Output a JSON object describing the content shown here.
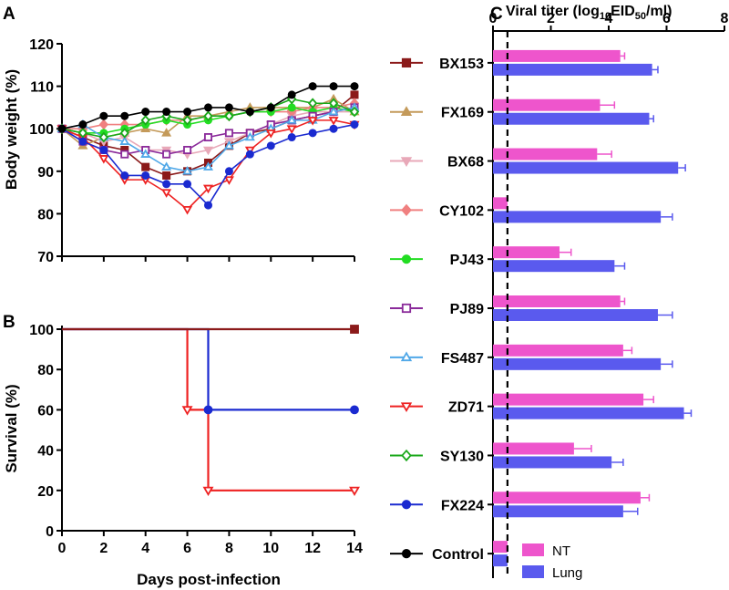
{
  "colors": {
    "BX153": "#8b1a1a",
    "FX169": "#c49a5a",
    "BX68": "#e8a8b8",
    "CY102": "#f08080",
    "PJ43": "#22dd22",
    "PJ89": "#8a2a9a",
    "FS487": "#50a8e8",
    "ZD71": "#ee2222",
    "SY130": "#1aa81a",
    "FX224": "#1a2ad0",
    "Control": "#000000",
    "NT": "#ee55cc",
    "Lung": "#5a5aee"
  },
  "panels": {
    "A": {
      "letter": "A"
    },
    "B": {
      "letter": "B"
    },
    "C": {
      "letter": "C",
      "title_prefix": "Viral titer (log",
      "title_sub": "10",
      "title_suffix": "EID",
      "title_sub2": "50",
      "title_end": "/ml)"
    }
  },
  "shared_xlabel": "Days post-infection",
  "chart_data": [
    {
      "panel": "A",
      "type": "line",
      "title": "",
      "xlabel": "Days post-infection",
      "ylabel": "Body weight (%)",
      "xlim": [
        0,
        14
      ],
      "ylim": [
        70,
        120
      ],
      "xticks": [
        "0",
        "2",
        "4",
        "6",
        "8",
        "10",
        "12",
        "14"
      ],
      "yticks": [
        "70",
        "80",
        "90",
        "100",
        "110",
        "120"
      ],
      "x": [
        0,
        1,
        2,
        3,
        4,
        5,
        6,
        7,
        8,
        9,
        10,
        11,
        12,
        13,
        14
      ],
      "series": [
        {
          "name": "BX153",
          "marker": "square",
          "values": [
            100,
            98,
            96,
            95,
            91,
            89,
            90,
            92,
            96,
            99,
            100,
            102,
            103,
            104,
            108
          ]
        },
        {
          "name": "FX169",
          "marker": "triangle-up",
          "values": [
            100,
            96,
            98,
            99,
            100,
            99,
            103,
            103,
            104,
            105,
            105,
            105,
            105,
            107,
            104
          ]
        },
        {
          "name": "BX68",
          "marker": "triangle-down",
          "values": [
            100,
            99,
            97,
            98,
            95,
            95,
            94,
            95,
            97,
            99,
            101,
            103,
            104,
            104,
            104
          ]
        },
        {
          "name": "CY102",
          "marker": "diamond",
          "values": [
            100,
            100,
            101,
            101,
            101,
            102,
            102,
            103,
            103,
            104,
            104,
            104,
            105,
            105,
            106
          ]
        },
        {
          "name": "PJ43",
          "marker": "circle",
          "values": [
            100,
            99,
            99,
            100,
            101,
            102,
            101,
            102,
            103,
            104,
            104,
            105,
            104,
            105,
            104
          ]
        },
        {
          "name": "PJ89",
          "marker": "square-open",
          "values": [
            100,
            97,
            95,
            94,
            95,
            94,
            95,
            98,
            99,
            99,
            101,
            102,
            103,
            104,
            105
          ]
        },
        {
          "name": "FS487",
          "marker": "triangle-up-open",
          "values": [
            100,
            101,
            98,
            97,
            94,
            91,
            90,
            91,
            96,
            98,
            100,
            102,
            102,
            104,
            105
          ]
        },
        {
          "name": "ZD71",
          "marker": "triangle-down-open",
          "values": [
            100,
            98,
            93,
            88,
            88,
            85,
            81,
            86,
            88,
            95,
            99,
            100,
            102,
            102,
            101
          ]
        },
        {
          "name": "SY130",
          "marker": "diamond-open",
          "values": [
            100,
            99,
            98,
            99,
            102,
            103,
            102,
            103,
            103,
            104,
            105,
            107,
            106,
            106,
            104
          ]
        },
        {
          "name": "FX224",
          "marker": "circle",
          "values": [
            100,
            97,
            95,
            89,
            89,
            87,
            87,
            82,
            90,
            94,
            96,
            98,
            99,
            100,
            101
          ]
        },
        {
          "name": "Control",
          "marker": "circle",
          "values": [
            100,
            101,
            103,
            103,
            104,
            104,
            104,
            105,
            105,
            104,
            105,
            108,
            110,
            110,
            110
          ]
        }
      ]
    },
    {
      "panel": "B",
      "type": "line",
      "title": "",
      "xlabel": "Days post-infection",
      "ylabel": "Survival (%)",
      "xlim": [
        0,
        14
      ],
      "ylim": [
        0,
        100
      ],
      "xticks": [
        "0",
        "2",
        "4",
        "6",
        "8",
        "10",
        "12",
        "14"
      ],
      "yticks": [
        "0",
        "20",
        "40",
        "60",
        "80",
        "100"
      ],
      "step": true,
      "series": [
        {
          "name": "ZD71",
          "points": [
            [
              0,
              100
            ],
            [
              6,
              100
            ],
            [
              6,
              60
            ],
            [
              7,
              60
            ],
            [
              7,
              20
            ],
            [
              14,
              20
            ]
          ],
          "end_marker": "triangle-down-open"
        },
        {
          "name": "FX224",
          "points": [
            [
              0,
              100
            ],
            [
              7,
              100
            ],
            [
              7,
              60
            ],
            [
              14,
              60
            ]
          ],
          "end_marker": "circle"
        },
        {
          "name": "BX153",
          "points": [
            [
              0,
              100
            ],
            [
              14,
              100
            ]
          ],
          "end_marker": "square"
        }
      ]
    },
    {
      "panel": "C",
      "type": "bar",
      "orientation": "horizontal",
      "title": "Viral titer (log10EID50/ml)",
      "xlim": [
        0,
        8
      ],
      "xticks": [
        "0",
        "2",
        "4",
        "6",
        "8"
      ],
      "threshold": 0.5,
      "categories": [
        "BX153",
        "FX169",
        "BX68",
        "CY102",
        "PJ43",
        "PJ89",
        "FS487",
        "ZD71",
        "SY130",
        "FX224",
        "Control"
      ],
      "series": [
        {
          "name": "NT",
          "values": [
            4.4,
            3.7,
            3.6,
            0.5,
            2.3,
            4.4,
            4.5,
            5.2,
            2.8,
            5.1,
            0.5
          ],
          "errors": [
            0.15,
            0.5,
            0.5,
            0,
            0.4,
            0.15,
            0.3,
            0.35,
            0.6,
            0.3,
            0
          ]
        },
        {
          "name": "Lung",
          "values": [
            5.5,
            5.4,
            6.4,
            5.8,
            4.2,
            5.7,
            5.8,
            6.6,
            4.1,
            4.5,
            0.5
          ],
          "errors": [
            0.2,
            0.15,
            0.25,
            0.4,
            0.35,
            0.5,
            0.4,
            0.25,
            0.4,
            0.5,
            0
          ]
        }
      ],
      "legend": [
        "NT",
        "Lung"
      ],
      "legend_position": "bottom-right"
    }
  ]
}
